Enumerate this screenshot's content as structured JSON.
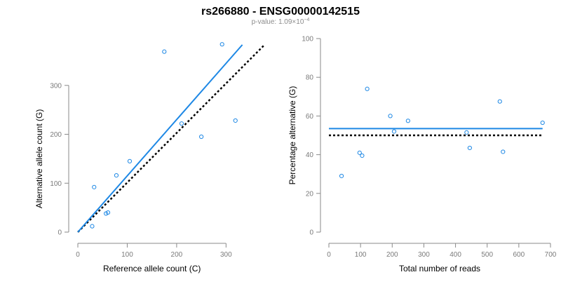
{
  "title": "rs266880 - ENSG00000142515",
  "subtitle": {
    "prefix": "p-value: 1.09×10",
    "exponent": "−4"
  },
  "colors": {
    "points": "#1e88e5",
    "fit": "#1e88e5",
    "reference": "#000000",
    "axis": "#8a8a8a"
  },
  "chart_data": [
    {
      "type": "scatter",
      "xlabel": "Reference allele count (C)",
      "ylabel": "Alternative allele count (G)",
      "xlim": [
        0,
        335
      ],
      "ylim": [
        0,
        390
      ],
      "xticks": [
        0,
        100,
        200,
        300
      ],
      "yticks": [
        0,
        100,
        200,
        300
      ],
      "grid": false,
      "points": [
        {
          "x": 33,
          "y": 92
        },
        {
          "x": 29,
          "y": 12
        },
        {
          "x": 57,
          "y": 38
        },
        {
          "x": 61,
          "y": 40
        },
        {
          "x": 78,
          "y": 116
        },
        {
          "x": 105,
          "y": 145
        },
        {
          "x": 175,
          "y": 369
        },
        {
          "x": 210,
          "y": 222
        },
        {
          "x": 250,
          "y": 195
        },
        {
          "x": 292,
          "y": 384
        },
        {
          "x": 319,
          "y": 228
        }
      ],
      "fit_line": {
        "x": [
          0,
          333
        ],
        "y": [
          0,
          383
        ]
      },
      "reference_line": {
        "x": [
          0,
          378
        ],
        "y": [
          0,
          383
        ]
      }
    },
    {
      "type": "scatter",
      "xlabel": "Total number of reads",
      "ylabel": "Percentage alternative (G)",
      "xlim": [
        0,
        700
      ],
      "ylim": [
        0,
        100
      ],
      "xticks": [
        0,
        100,
        200,
        300,
        400,
        500,
        600,
        700
      ],
      "yticks": [
        0,
        20,
        40,
        60,
        80,
        100
      ],
      "grid": false,
      "points": [
        {
          "x": 40,
          "y": 29
        },
        {
          "x": 97,
          "y": 41
        },
        {
          "x": 105,
          "y": 39.5
        },
        {
          "x": 121,
          "y": 74
        },
        {
          "x": 194,
          "y": 60
        },
        {
          "x": 206,
          "y": 52
        },
        {
          "x": 250,
          "y": 57.5
        },
        {
          "x": 435,
          "y": 51.5
        },
        {
          "x": 445,
          "y": 43.5
        },
        {
          "x": 540,
          "y": 67.5
        },
        {
          "x": 550,
          "y": 41.5
        },
        {
          "x": 675,
          "y": 56.5
        }
      ],
      "fit_line": {
        "x": [
          0,
          675
        ],
        "y": [
          53.5,
          53.5
        ]
      },
      "reference_line": {
        "x": [
          0,
          675
        ],
        "y": [
          50,
          50
        ]
      }
    }
  ]
}
